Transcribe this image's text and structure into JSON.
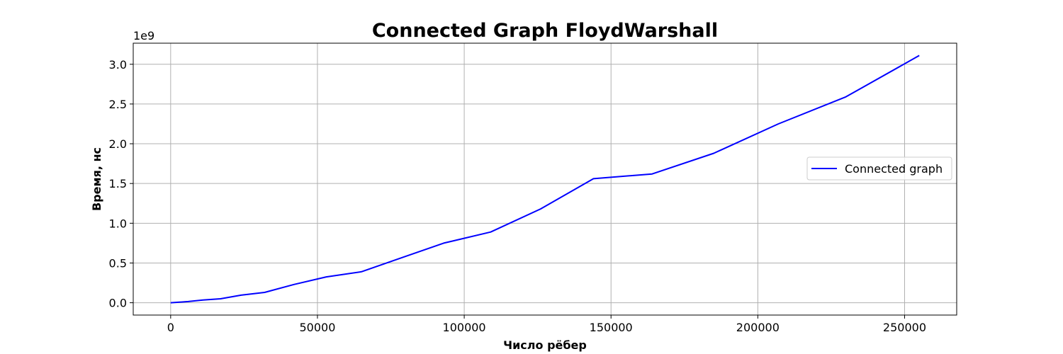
{
  "chart_data": {
    "type": "line",
    "title": "Connected Graph FloydWarshall",
    "xlabel": "Число рёбер",
    "ylabel": "Время, нс",
    "y_offset_label": "1e9",
    "xlim": [
      -12750,
      267750
    ],
    "ylim": [
      -0.155,
      3.265
    ],
    "x_ticks": [
      0,
      50000,
      100000,
      150000,
      200000,
      250000
    ],
    "x_tick_labels": [
      "0",
      "50000",
      "100000",
      "150000",
      "200000",
      "250000"
    ],
    "y_ticks": [
      0.0,
      0.5,
      1.0,
      1.5,
      2.0,
      2.5,
      3.0
    ],
    "y_tick_labels": [
      "0.0",
      "0.5",
      "1.0",
      "1.5",
      "2.0",
      "2.5",
      "3.0"
    ],
    "grid": true,
    "legend_position": "center-right",
    "series": [
      {
        "name": "Connected graph",
        "color": "#0000ff",
        "x": [
          0,
          6000,
          11000,
          17000,
          24000,
          32000,
          42000,
          53000,
          65000,
          79000,
          93000,
          109000,
          126000,
          144000,
          164000,
          185000,
          207000,
          230000,
          255000
        ],
        "y": [
          0.0,
          0.015,
          0.035,
          0.05,
          0.095,
          0.13,
          0.23,
          0.325,
          0.39,
          0.57,
          0.75,
          0.89,
          1.18,
          1.56,
          1.62,
          1.88,
          2.25,
          2.59,
          3.11
        ]
      }
    ]
  }
}
